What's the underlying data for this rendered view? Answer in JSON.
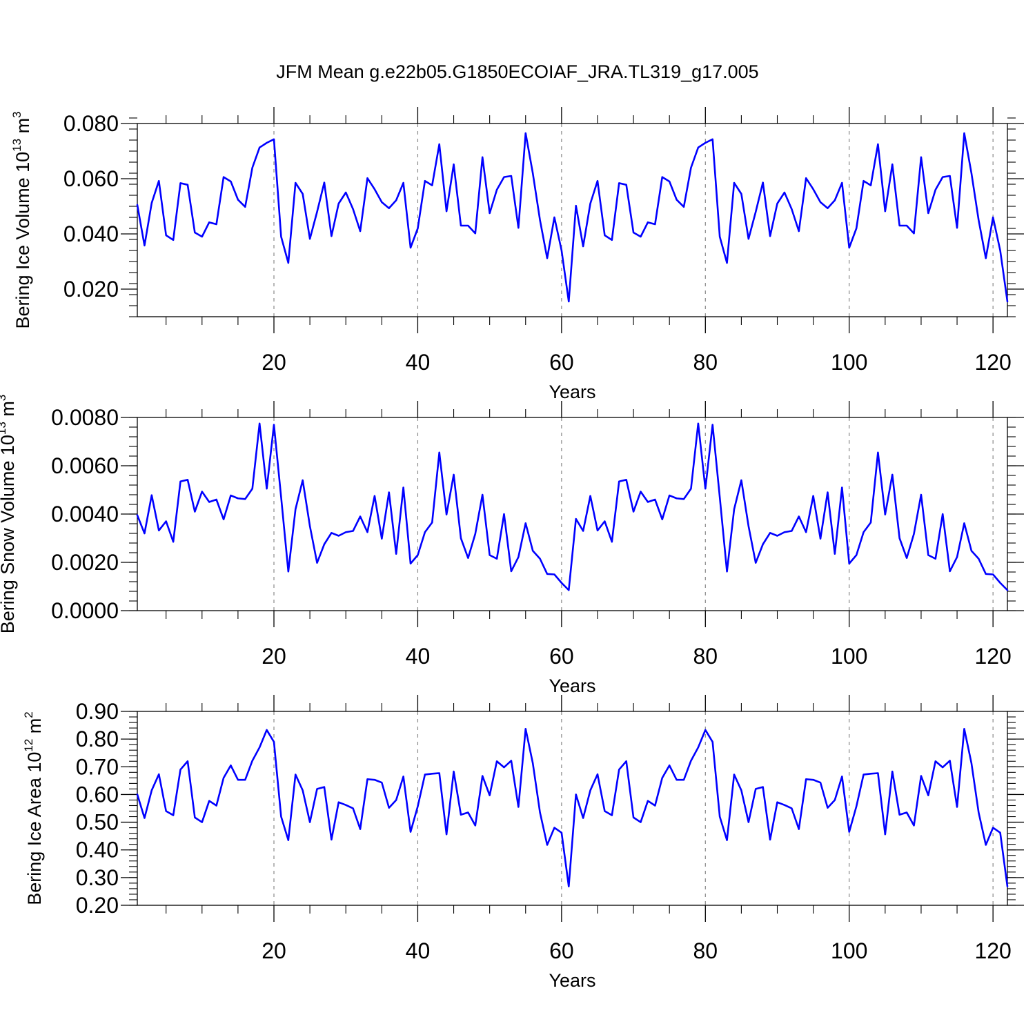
{
  "title": "JFM Mean g.e22b05.G1850ECOIAF_JRA.TL319_g17.005",
  "colors": {
    "line": "#0000ff",
    "axis": "#000000",
    "grid": "#888888"
  },
  "chart_data": [
    {
      "type": "line",
      "ylabel": "Bering Ice Volume",
      "yunit_base": "10",
      "yunit_exp": "13",
      "yunit_tail": "m",
      "yunit_tail_exp": "3",
      "xlabel": "Years",
      "xlim": [
        1,
        122
      ],
      "ylim": [
        0.01,
        0.08
      ],
      "xticks": [
        20,
        40,
        60,
        80,
        100,
        120
      ],
      "yticks": [
        0.02,
        0.04,
        0.06,
        0.08
      ],
      "ytick_labels": [
        "0.020",
        "0.040",
        "0.060",
        "0.080"
      ],
      "xtick_labels": [
        "20",
        "40",
        "60",
        "80",
        "100",
        "120"
      ],
      "grid": "vertical dashed at major x ticks",
      "series": [
        {
          "values": [
            0.0505,
            0.0358,
            0.0512,
            0.0592,
            0.0395,
            0.0378,
            0.0584,
            0.0578,
            0.0405,
            0.039,
            0.0442,
            0.0435,
            0.0606,
            0.059,
            0.0524,
            0.0498,
            0.064,
            0.0713,
            0.073,
            0.0743,
            0.039,
            0.0295,
            0.0585,
            0.0545,
            0.0382,
            0.048,
            0.0586,
            0.0392,
            0.051,
            0.055,
            0.049,
            0.041,
            0.0602,
            0.0562,
            0.0515,
            0.0493,
            0.0522,
            0.0585,
            0.035,
            0.042,
            0.0592,
            0.0576,
            0.0725,
            0.0482,
            0.0652,
            0.043,
            0.043,
            0.0402,
            0.0678,
            0.0475,
            0.056,
            0.0606,
            0.061,
            0.0422,
            0.0765,
            0.062,
            0.045,
            0.0312,
            0.046,
            0.034,
            0.0155,
            0.0502,
            0.0355,
            0.051,
            0.0592,
            0.0395,
            0.0378,
            0.0584,
            0.0578,
            0.0405,
            0.039,
            0.0442,
            0.0435,
            0.0606,
            0.059,
            0.0524,
            0.0498,
            0.064,
            0.0713,
            0.073,
            0.0743,
            0.039,
            0.0295,
            0.0585,
            0.0545,
            0.0382,
            0.048,
            0.0586,
            0.0392,
            0.051,
            0.055,
            0.049,
            0.041,
            0.0602,
            0.0562,
            0.0515,
            0.0493,
            0.0522,
            0.0585,
            0.035,
            0.042,
            0.0592,
            0.0576,
            0.0725,
            0.0482,
            0.0652,
            0.043,
            0.043,
            0.0402,
            0.0678,
            0.0475,
            0.056,
            0.0606,
            0.061,
            0.0422,
            0.0765,
            0.062,
            0.045,
            0.0312,
            0.046,
            0.034,
            0.0155
          ]
        }
      ]
    },
    {
      "type": "line",
      "ylabel": "Bering Snow Volume",
      "yunit_base": "10",
      "yunit_exp": "13",
      "yunit_tail": "m",
      "yunit_tail_exp": "3",
      "xlabel": "Years",
      "xlim": [
        1,
        122
      ],
      "ylim": [
        0.0,
        0.008
      ],
      "xticks": [
        20,
        40,
        60,
        80,
        100,
        120
      ],
      "yticks": [
        0.0,
        0.002,
        0.004,
        0.006,
        0.008
      ],
      "ytick_labels": [
        "0.0000",
        "0.0020",
        "0.0040",
        "0.0060",
        "0.0080"
      ],
      "xtick_labels": [
        "20",
        "40",
        "60",
        "80",
        "100",
        "120"
      ],
      "grid": "vertical dashed at major x ticks",
      "series": [
        {
          "values": [
            0.00395,
            0.0032,
            0.00478,
            0.00332,
            0.0037,
            0.00285,
            0.00535,
            0.00542,
            0.0041,
            0.00493,
            0.0045,
            0.0046,
            0.00378,
            0.00477,
            0.00465,
            0.00462,
            0.00505,
            0.00775,
            0.00505,
            0.0077,
            0.0047,
            0.00162,
            0.0042,
            0.0054,
            0.0035,
            0.00198,
            0.00275,
            0.00322,
            0.0031,
            0.00325,
            0.0033,
            0.0039,
            0.00325,
            0.00475,
            0.00298,
            0.0049,
            0.00235,
            0.0051,
            0.00195,
            0.0023,
            0.00325,
            0.00365,
            0.00655,
            0.00398,
            0.00563,
            0.003,
            0.00218,
            0.00318,
            0.0048,
            0.0023,
            0.00215,
            0.004,
            0.00163,
            0.00222,
            0.00362,
            0.00248,
            0.00215,
            0.00152,
            0.0015,
            0.00115,
            0.00085,
            0.0038,
            0.0033,
            0.00475,
            0.00332,
            0.0037,
            0.00285,
            0.00535,
            0.00542,
            0.0041,
            0.00493,
            0.0045,
            0.0046,
            0.00378,
            0.00477,
            0.00465,
            0.00462,
            0.00505,
            0.00775,
            0.00505,
            0.0077,
            0.0047,
            0.00162,
            0.0042,
            0.0054,
            0.0035,
            0.00198,
            0.00275,
            0.00322,
            0.0031,
            0.00325,
            0.0033,
            0.0039,
            0.00325,
            0.00475,
            0.00298,
            0.0049,
            0.00235,
            0.0051,
            0.00195,
            0.0023,
            0.00325,
            0.00365,
            0.00655,
            0.00398,
            0.00563,
            0.003,
            0.00218,
            0.00318,
            0.0048,
            0.0023,
            0.00215,
            0.004,
            0.00163,
            0.00222,
            0.00362,
            0.00248,
            0.00215,
            0.00152,
            0.0015,
            0.00115,
            0.00085
          ]
        }
      ]
    },
    {
      "type": "line",
      "ylabel": "Bering Ice Area",
      "yunit_base": "10",
      "yunit_exp": "12",
      "yunit_tail": "m",
      "yunit_tail_exp": "2",
      "xlabel": "Years",
      "xlim": [
        1,
        122
      ],
      "ylim": [
        0.2,
        0.9
      ],
      "xticks": [
        20,
        40,
        60,
        80,
        100,
        120
      ],
      "yticks": [
        0.2,
        0.3,
        0.4,
        0.5,
        0.6,
        0.7,
        0.8,
        0.9
      ],
      "ytick_labels": [
        "0.20",
        "0.30",
        "0.40",
        "0.50",
        "0.60",
        "0.70",
        "0.80",
        "0.90"
      ],
      "xtick_labels": [
        "20",
        "40",
        "60",
        "80",
        "100",
        "120"
      ],
      "grid": "vertical dashed at major x ticks",
      "series": [
        {
          "values": [
            0.6,
            0.515,
            0.615,
            0.673,
            0.54,
            0.525,
            0.69,
            0.72,
            0.517,
            0.5,
            0.577,
            0.56,
            0.66,
            0.705,
            0.653,
            0.653,
            0.722,
            0.77,
            0.833,
            0.79,
            0.52,
            0.435,
            0.672,
            0.615,
            0.5,
            0.62,
            0.627,
            0.437,
            0.572,
            0.562,
            0.55,
            0.475,
            0.655,
            0.653,
            0.643,
            0.552,
            0.58,
            0.665,
            0.465,
            0.557,
            0.672,
            0.675,
            0.677,
            0.456,
            0.683,
            0.527,
            0.535,
            0.488,
            0.667,
            0.597,
            0.72,
            0.698,
            0.722,
            0.555,
            0.837,
            0.713,
            0.535,
            0.418,
            0.48,
            0.462,
            0.268,
            0.6,
            0.515,
            0.615,
            0.673,
            0.54,
            0.525,
            0.69,
            0.72,
            0.517,
            0.5,
            0.577,
            0.56,
            0.66,
            0.705,
            0.653,
            0.653,
            0.722,
            0.77,
            0.833,
            0.79,
            0.52,
            0.435,
            0.672,
            0.615,
            0.5,
            0.62,
            0.627,
            0.437,
            0.572,
            0.562,
            0.55,
            0.475,
            0.655,
            0.653,
            0.643,
            0.552,
            0.58,
            0.665,
            0.465,
            0.557,
            0.672,
            0.675,
            0.677,
            0.456,
            0.683,
            0.527,
            0.535,
            0.488,
            0.667,
            0.597,
            0.72,
            0.698,
            0.722,
            0.555,
            0.837,
            0.713,
            0.535,
            0.418,
            0.48,
            0.462,
            0.268
          ]
        }
      ]
    }
  ]
}
